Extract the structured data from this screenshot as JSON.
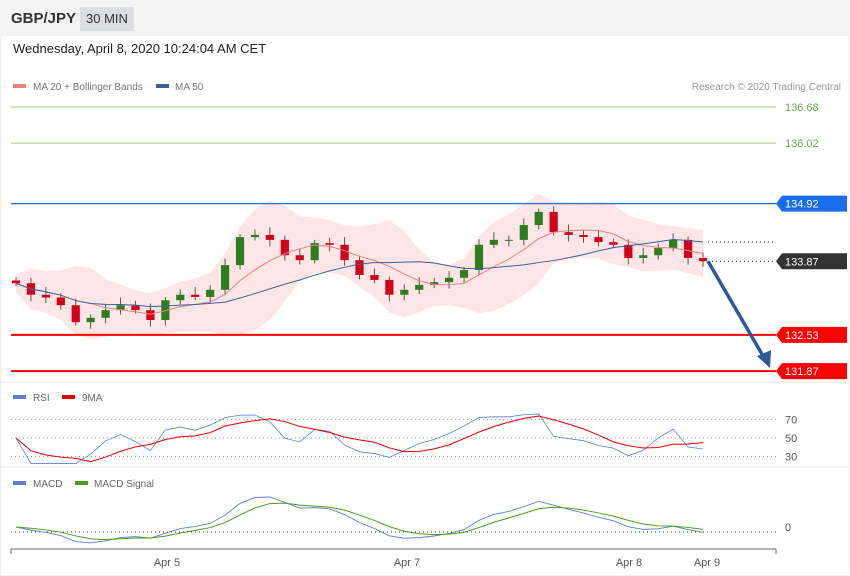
{
  "header": {
    "symbol": "GBP/JPY",
    "timeframe": "30 MIN"
  },
  "date_line": "Wednesday, April 8, 2020 10:24:04 AM CET",
  "legend": {
    "ma20": "MA 20 + Bollinger Bands",
    "ma50": "MA 50",
    "rsi": "RSI",
    "rsi_ma": "9MA",
    "macd": "MACD",
    "macd_signal": "MACD Signal"
  },
  "copyright": "Research © 2020 Trading Central",
  "colors": {
    "ma20": "#f08080",
    "ma50": "#3a5fa0",
    "band": "#ffe0e0",
    "up": "#2e7d1e",
    "down": "#d0021b",
    "resistance": "#6aa84f",
    "pivot": "#1a6cf0",
    "support": "#ff0000",
    "last": "#333333",
    "rsi": "#5b7fd6",
    "rsi_ma": "#e00000",
    "macd": "#5b7fd6",
    "macd_signal": "#4a9e1c",
    "arrow": "#2d5a96"
  },
  "chart_data": {
    "type": "candlestick",
    "closes": [
      133.47,
      133.26,
      133.21,
      133.07,
      132.76,
      132.84,
      132.98,
      133.07,
      132.98,
      132.8,
      133.16,
      133.26,
      133.22,
      133.35,
      133.8,
      134.31,
      134.35,
      134.26,
      133.98,
      133.89,
      134.2,
      134.17,
      133.89,
      133.62,
      133.53,
      133.26,
      133.35,
      133.44,
      133.49,
      133.57,
      133.71,
      134.17,
      134.26,
      134.26,
      134.53,
      134.77,
      134.4,
      134.35,
      134.31,
      134.22,
      134.17,
      133.93,
      133.98,
      134.11,
      134.26,
      133.93,
      133.87
    ],
    "x_ticks": [
      "Apr 5",
      "Apr 7",
      "Apr 8",
      "Apr 9"
    ],
    "levels": [
      {
        "value": "136.68",
        "type": "resistance"
      },
      {
        "value": "136.02",
        "type": "resistance"
      },
      {
        "value": "134.92",
        "type": "pivot"
      },
      {
        "value": "133.87",
        "type": "last"
      },
      {
        "value": "132.53",
        "type": "support"
      },
      {
        "value": "131.87",
        "type": "support"
      }
    ],
    "forecast_target": 131.87,
    "rsi_ticks": [
      "70",
      "50",
      "30"
    ],
    "macd_ticks": [
      "0"
    ]
  }
}
